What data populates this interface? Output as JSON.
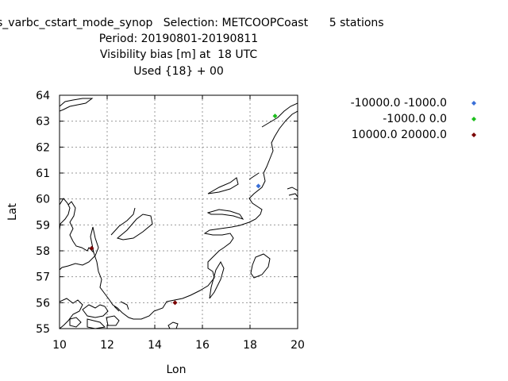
{
  "title_lines": [
    "s_varbc_cstart_mode_synop   Selection: METCOOPCoast      5 stations",
    "Period: 20190801-20190811",
    "Visibility bias [m] at  18 UTC",
    "Used {18} + 00"
  ],
  "chart_data": {
    "type": "scatter",
    "title": "Visibility bias [m] at  18 UTC",
    "xlabel": "Lon",
    "ylabel": "Lat",
    "xlim": [
      10,
      20
    ],
    "ylim": [
      55,
      64
    ],
    "xticks": [
      10,
      12,
      14,
      16,
      18,
      20
    ],
    "yticks": [
      55,
      56,
      57,
      58,
      59,
      60,
      61,
      62,
      63,
      64
    ],
    "grid": true,
    "legend_position": "right",
    "series": [
      {
        "name": "-10000.0 -1000.0",
        "color": "#3a6fd8",
        "points": [
          {
            "x": 18.35,
            "y": 60.5
          }
        ]
      },
      {
        "name": "-1000.0 0.0",
        "color": "#1cbf1c",
        "points": [
          {
            "x": 19.05,
            "y": 63.2
          }
        ]
      },
      {
        "name": "10000.0 20000.0",
        "color": "#7a0000",
        "points": [
          {
            "x": 11.35,
            "y": 58.1
          },
          {
            "x": 14.85,
            "y": 56.0
          }
        ]
      }
    ]
  }
}
